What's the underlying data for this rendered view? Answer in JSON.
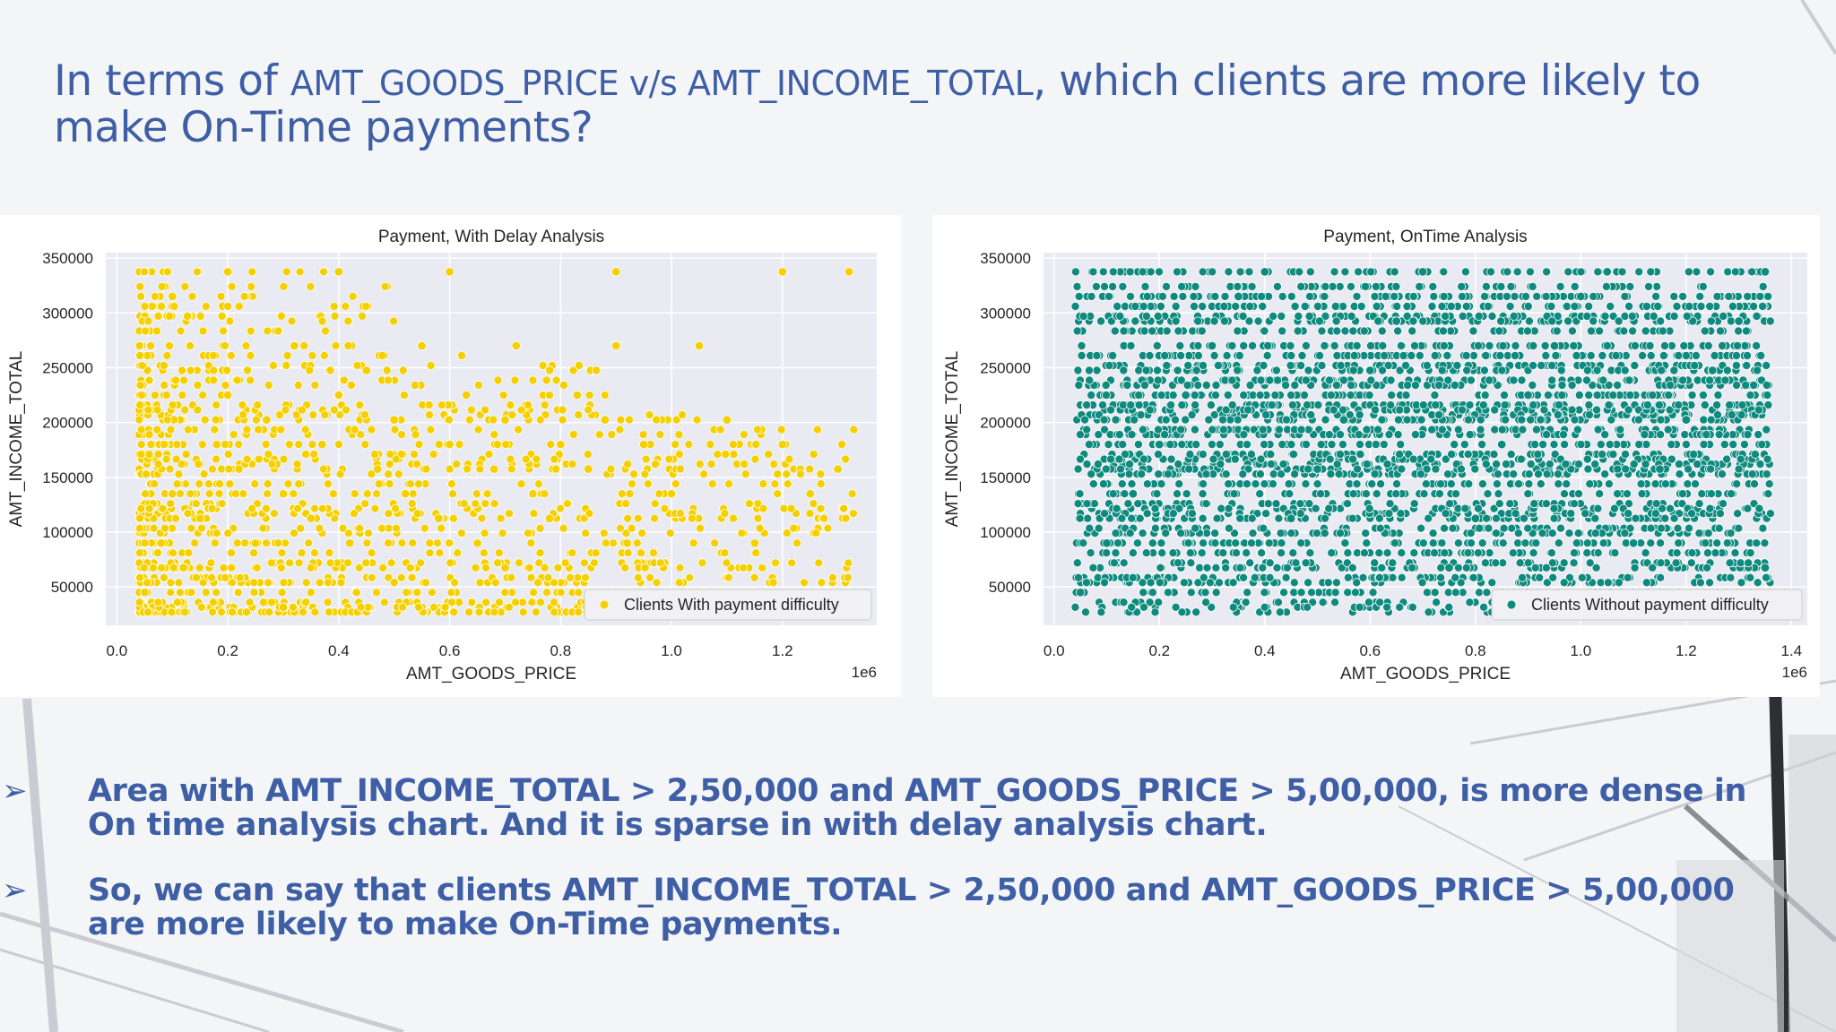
{
  "slide": {
    "title_prefix": "In terms of ",
    "title_var_x": "AMT_GOODS_PRICE",
    "title_vs": " v/s ",
    "title_var_y": "AMT_INCOME_TOTAL",
    "title_suffix": ", which clients are more likely to make On-Time payments?",
    "bullets": [
      {
        "marker": "➢",
        "text": "Area with AMT_INCOME_TOTAL > 2,50,000 and AMT_GOODS_PRICE > 5,00,000, is more dense in On time analysis chart. And it is sparse in with delay analysis chart."
      },
      {
        "marker": "➢",
        "text": "So, we can say that clients AMT_INCOME_TOTAL > 2,50,000 and AMT_GOODS_PRICE > 5,00,000 are more likely to make On-Time payments."
      }
    ]
  },
  "chart_data": [
    {
      "type": "scatter",
      "title": "Payment, With Delay Analysis",
      "xlabel": "AMT_GOODS_PRICE",
      "ylabel": "AMT_INCOME_TOTAL",
      "x_offset_label": "1e6",
      "xticks": [
        "0.0",
        "0.2",
        "0.4",
        "0.6",
        "0.8",
        "1.0",
        "1.2"
      ],
      "yticks": [
        "50000",
        "100000",
        "150000",
        "200000",
        "250000",
        "300000",
        "350000"
      ],
      "xlim": [
        -0.02,
        1.37
      ],
      "ylim": [
        15000,
        355000
      ],
      "grid": true,
      "legend_position": "lower-right",
      "series": [
        {
          "name": "Clients With payment difficulty",
          "color": "#f5d000",
          "density": "dense below x=0.5, sparse above 250000",
          "points": [
            [
              0.05,
              45000
            ],
            [
              0.08,
              90000
            ],
            [
              0.1,
              135000
            ],
            [
              0.12,
              67500
            ],
            [
              0.15,
              112500
            ],
            [
              0.18,
              180000
            ],
            [
              0.2,
              225000
            ],
            [
              0.22,
              157500
            ],
            [
              0.25,
              90000
            ],
            [
              0.27,
              202500
            ],
            [
              0.3,
              135000
            ],
            [
              0.32,
              270000
            ],
            [
              0.35,
              112500
            ],
            [
              0.37,
              180000
            ],
            [
              0.4,
              225000
            ],
            [
              0.42,
              90000
            ],
            [
              0.45,
              247500
            ],
            [
              0.47,
              157500
            ],
            [
              0.5,
              202500
            ],
            [
              0.52,
              135000
            ],
            [
              0.55,
              270000
            ],
            [
              0.58,
              112500
            ],
            [
              0.6,
              180000
            ],
            [
              0.63,
              225000
            ],
            [
              0.65,
              90000
            ],
            [
              0.68,
              157500
            ],
            [
              0.7,
              202500
            ],
            [
              0.72,
              270000
            ],
            [
              0.75,
              135000
            ],
            [
              0.78,
              112500
            ],
            [
              0.8,
              180000
            ],
            [
              0.83,
              225000
            ],
            [
              0.85,
              157500
            ],
            [
              0.88,
              202500
            ],
            [
              0.9,
              270000
            ],
            [
              0.92,
              90000
            ],
            [
              0.95,
              180000
            ],
            [
              1.0,
              135000
            ],
            [
              1.05,
              270000
            ],
            [
              1.1,
              202500
            ],
            [
              1.15,
              90000
            ],
            [
              1.2,
              180000
            ],
            [
              1.25,
              135000
            ],
            [
              1.3,
              157500
            ],
            [
              1.32,
              337500
            ],
            [
              0.1,
              315000
            ],
            [
              0.2,
              337500
            ],
            [
              0.4,
              337500
            ],
            [
              0.6,
              337500
            ],
            [
              0.9,
              337500
            ],
            [
              1.2,
              337500
            ],
            [
              0.3,
              31500
            ],
            [
              0.5,
              54000
            ],
            [
              0.7,
              67500
            ]
          ]
        }
      ]
    },
    {
      "type": "scatter",
      "title": "Payment, OnTime Analysis",
      "xlabel": "AMT_GOODS_PRICE",
      "ylabel": "AMT_INCOME_TOTAL",
      "x_offset_label": "1e6",
      "xticks": [
        "0.0",
        "0.2",
        "0.4",
        "0.6",
        "0.8",
        "1.0",
        "1.2",
        "1.4"
      ],
      "yticks": [
        "50000",
        "100000",
        "150000",
        "200000",
        "250000",
        "300000",
        "350000"
      ],
      "xlim": [
        -0.02,
        1.43
      ],
      "ylim": [
        15000,
        355000
      ],
      "grid": true,
      "legend_position": "lower-right",
      "series": [
        {
          "name": "Clients Without payment difficulty",
          "color": "#0f8a7e",
          "density": "uniformly dense across 0.05–1.35 and 27000–337500",
          "points": [
            [
              0.05,
              45000
            ],
            [
              0.1,
              90000
            ],
            [
              0.15,
              135000
            ],
            [
              0.2,
              180000
            ],
            [
              0.25,
              225000
            ],
            [
              0.3,
              270000
            ],
            [
              0.35,
              315000
            ],
            [
              0.4,
              337500
            ],
            [
              0.45,
              112500
            ],
            [
              0.5,
              157500
            ],
            [
              0.55,
              202500
            ],
            [
              0.6,
              247500
            ],
            [
              0.65,
              292500
            ],
            [
              0.7,
              337500
            ],
            [
              0.75,
              67500
            ],
            [
              0.8,
              112500
            ],
            [
              0.85,
              180000
            ],
            [
              0.9,
              225000
            ],
            [
              0.95,
              270000
            ],
            [
              1.0,
              315000
            ],
            [
              1.05,
              337500
            ],
            [
              1.1,
              90000
            ],
            [
              1.15,
              157500
            ],
            [
              1.2,
              202500
            ],
            [
              1.25,
              247500
            ],
            [
              1.3,
              292500
            ],
            [
              1.35,
              337500
            ],
            [
              1.35,
              67500
            ]
          ]
        }
      ]
    }
  ]
}
